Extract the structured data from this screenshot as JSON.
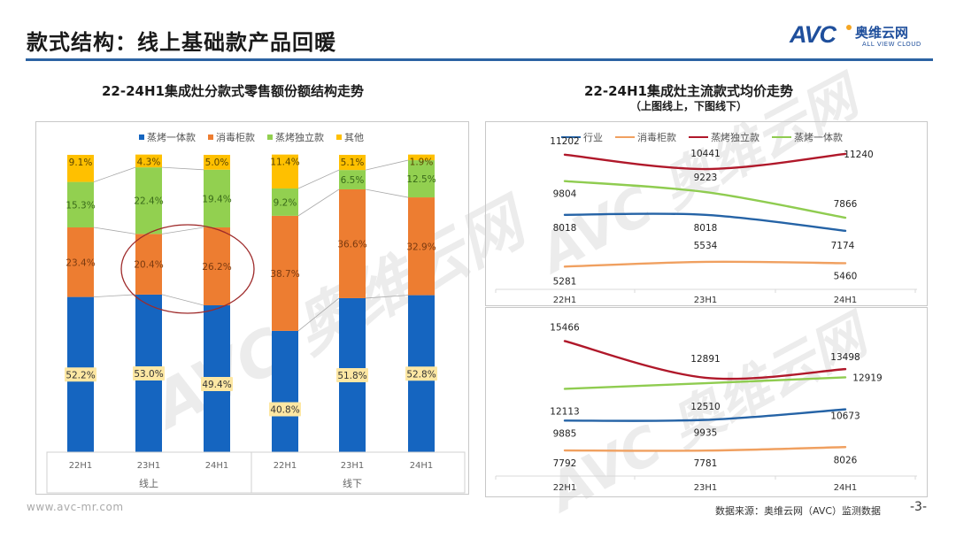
{
  "header": {
    "title": "款式结构：线上基础款产品回暖",
    "logo": {
      "mark": "AVC",
      "name_cn": "奥维云网",
      "name_en": "ALL VIEW CLOUD"
    }
  },
  "colors": {
    "blue": "#1565c0",
    "orange": "#ed7d31",
    "green": "#92d050",
    "yellow": "#ffc000",
    "line_industry": "#2563a6",
    "line_cabinet": "#f0a060",
    "line_steam_standalone": "#b0182a",
    "line_steam_integrated": "#8fcc50",
    "accent": "#2c63a3"
  },
  "chart_data": [
    {
      "type": "bar",
      "stacked": true,
      "title": "22-24H1集成灶分款式零售额份额结构走势",
      "legend": [
        "蒸烤一体款",
        "消毒柜款",
        "蒸烤独立款",
        "其他"
      ],
      "legend_position": "top",
      "categories": [
        "22H1",
        "23H1",
        "24H1",
        "22H1",
        "23H1",
        "24H1"
      ],
      "groups": [
        {
          "label": "线上",
          "categories": [
            "22H1",
            "23H1",
            "24H1"
          ]
        },
        {
          "label": "线下",
          "categories": [
            "22H1",
            "23H1",
            "24H1"
          ]
        }
      ],
      "series": [
        {
          "name": "蒸烤一体款",
          "values": [
            52.2,
            53.0,
            49.4,
            40.8,
            51.8,
            52.8
          ],
          "labels": [
            "52.2%",
            "53.0%",
            "49.4%",
            "40.8%",
            "51.8%",
            "52.8%"
          ]
        },
        {
          "name": "消毒柜款",
          "values": [
            23.4,
            20.4,
            26.2,
            38.7,
            36.6,
            32.9
          ],
          "labels": [
            "23.4%",
            "20.4%",
            "26.2%",
            "38.7%",
            "36.6%",
            "32.9%"
          ]
        },
        {
          "name": "蒸烤独立款",
          "values": [
            15.3,
            22.4,
            19.4,
            9.2,
            6.5,
            12.5
          ],
          "labels": [
            "15.3%",
            "22.4%",
            "19.4%",
            "9.2%",
            "6.5%",
            "12.5%"
          ]
        },
        {
          "name": "其他",
          "values": [
            9.1,
            4.3,
            5.0,
            11.4,
            5.1,
            1.9
          ],
          "labels": [
            "9.1%",
            "4.3%",
            "5.0%",
            "11.4%",
            "5.1%",
            "1.9%"
          ]
        }
      ],
      "ylim": [
        0,
        100
      ],
      "annotation": "circle highlighting 消毒柜款 23H1–24H1 online"
    },
    {
      "type": "line",
      "title": "22-24H1集成灶主流款式均价走势",
      "subtitle": "（上图线上，下图线下）",
      "legend": [
        "行业",
        "消毒柜款",
        "蒸烤独立款",
        "蒸烤一体款"
      ],
      "legend_position": "top",
      "x": [
        "22H1",
        "23H1",
        "24H1"
      ],
      "panels": [
        {
          "name": "线上",
          "series": [
            {
              "name": "行业",
              "values": [
                8018,
                8018,
                7174
              ]
            },
            {
              "name": "消毒柜款",
              "values": [
                5281,
                5534,
                5460
              ]
            },
            {
              "name": "蒸烤独立款",
              "values": [
                11202,
                10441,
                11240
              ]
            },
            {
              "name": "蒸烤一体款",
              "values": [
                9804,
                9223,
                7866
              ]
            }
          ]
        },
        {
          "name": "线下",
          "series": [
            {
              "name": "行业",
              "values": [
                9885,
                9935,
                10673
              ]
            },
            {
              "name": "消毒柜款",
              "values": [
                7792,
                7781,
                8026
              ]
            },
            {
              "name": "蒸烤独立款",
              "values": [
                15466,
                12891,
                13498
              ]
            },
            {
              "name": "蒸烤一体款",
              "values": [
                12113,
                12510,
                12919
              ]
            }
          ]
        }
      ]
    }
  ],
  "footer": {
    "url": "www.avc-mr.com",
    "source": "数据来源：奥维云网（AVC）监测数据",
    "page": "-3-"
  }
}
